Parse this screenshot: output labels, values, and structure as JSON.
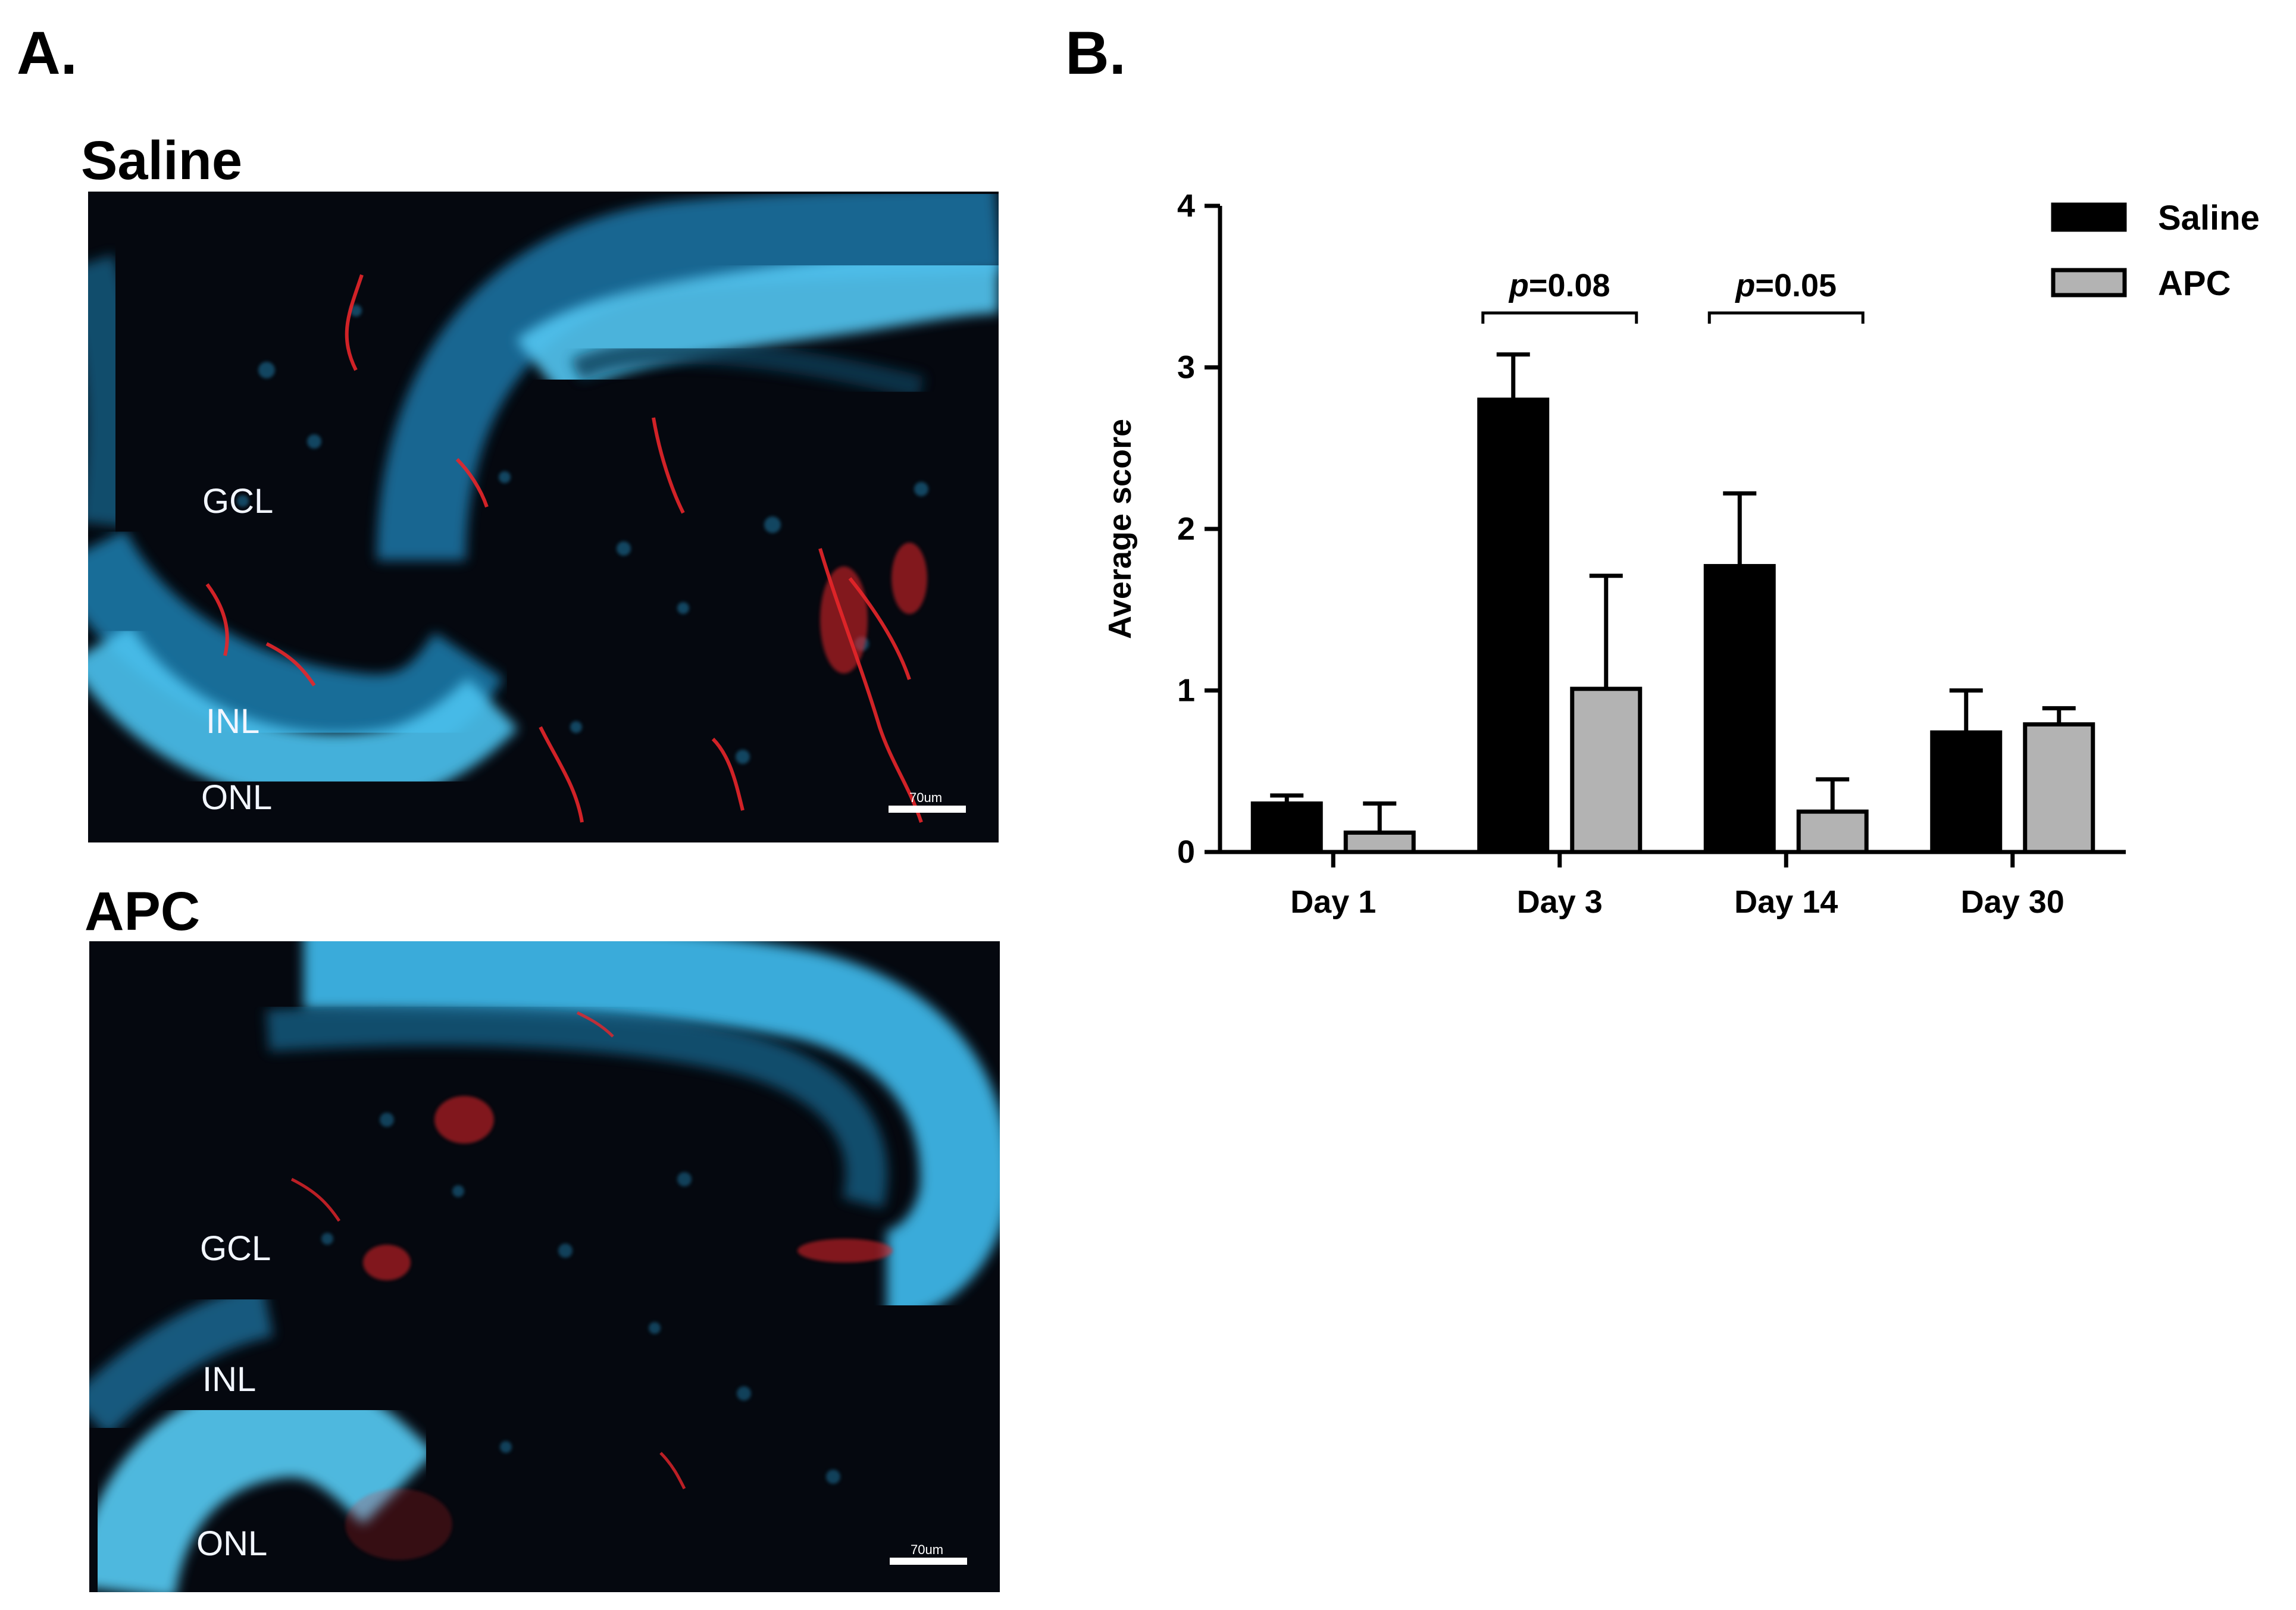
{
  "panel_letters": {
    "a": "A.",
    "b": "B."
  },
  "images": [
    {
      "title": "Saline",
      "labels": {
        "gcl": "GCL",
        "inl": "INL",
        "onl": "ONL"
      },
      "scalebar": "70um"
    },
    {
      "title": "APC",
      "labels": {
        "gcl": "GCL",
        "inl": "INL",
        "onl": "ONL"
      },
      "scalebar": "70um"
    }
  ],
  "colors": {
    "saline": "#000000",
    "apc": "#b3b3b3",
    "nuclei": "#38b6e8",
    "vessels": "#e8262a",
    "background": "#05080f"
  },
  "chart_data": {
    "type": "bar",
    "categories": [
      "Day 1",
      "Day 3",
      "Day 14",
      "Day 30"
    ],
    "series": [
      {
        "name": "Saline",
        "values": [
          0.3,
          2.8,
          1.77,
          0.74
        ],
        "errors": [
          0.05,
          0.28,
          0.45,
          0.26
        ]
      },
      {
        "name": "APC",
        "values": [
          0.12,
          1.01,
          0.25,
          0.79
        ],
        "errors": [
          0.18,
          0.7,
          0.2,
          0.1
        ]
      }
    ],
    "ylabel": "Average score",
    "ylim": [
      0,
      4
    ],
    "yticks": [
      0,
      1,
      2,
      3,
      4
    ],
    "grid": false,
    "legend": "top-right",
    "annotations": [
      {
        "categories": [
          "Day 3"
        ],
        "text": "p=0.08"
      },
      {
        "categories": [
          "Day 14"
        ],
        "text": "p=0.05"
      }
    ]
  }
}
